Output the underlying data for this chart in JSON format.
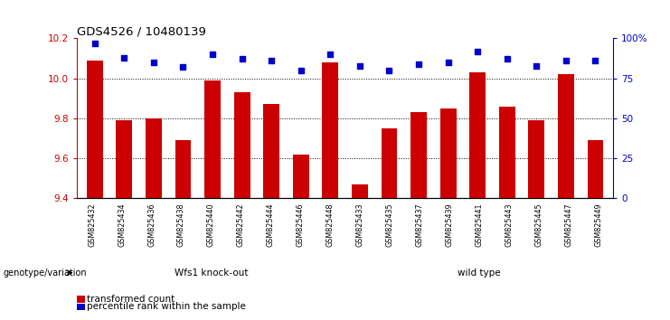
{
  "title": "GDS4526 / 10480139",
  "samples": [
    "GSM825432",
    "GSM825434",
    "GSM825436",
    "GSM825438",
    "GSM825440",
    "GSM825442",
    "GSM825444",
    "GSM825446",
    "GSM825448",
    "GSM825433",
    "GSM825435",
    "GSM825437",
    "GSM825439",
    "GSM825441",
    "GSM825443",
    "GSM825445",
    "GSM825447",
    "GSM825449"
  ],
  "red_values": [
    10.09,
    9.79,
    9.8,
    9.69,
    9.99,
    9.93,
    9.87,
    9.62,
    10.08,
    9.47,
    9.75,
    9.83,
    9.85,
    10.03,
    9.86,
    9.79,
    10.02,
    9.69
  ],
  "blue_values": [
    97,
    88,
    85,
    82,
    90,
    87,
    86,
    80,
    90,
    83,
    80,
    84,
    85,
    92,
    87,
    83,
    86,
    86
  ],
  "group1_label": "Wfs1 knock-out",
  "group2_label": "wild type",
  "group1_count": 9,
  "group2_count": 9,
  "ylim_left": [
    9.4,
    10.2
  ],
  "ylim_right": [
    0,
    100
  ],
  "yticks_left": [
    9.4,
    9.6,
    9.8,
    10.0,
    10.2
  ],
  "yticks_right": [
    0,
    25,
    50,
    75,
    100
  ],
  "ytick_labels_right": [
    "0",
    "25",
    "50",
    "75",
    "100%"
  ],
  "bar_color": "#cc0000",
  "dot_color": "#0000cc",
  "group1_bg": "#aaffaa",
  "group2_bg": "#44dd44",
  "tick_bg_color": "#cccccc",
  "xlabel_color": "#cc0000",
  "right_axis_color": "#0000cc",
  "legend_red_label": "transformed count",
  "legend_blue_label": "percentile rank within the sample"
}
